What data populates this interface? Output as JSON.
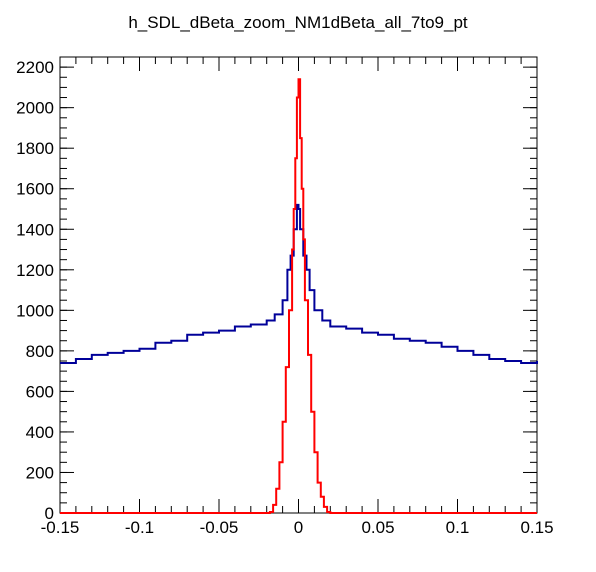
{
  "chart_data": {
    "type": "histogram",
    "title": "h_SDL_dBeta_zoom_NM1dBeta_all_7to9_pt",
    "xlabel": "",
    "ylabel": "",
    "xlim": [
      -0.15,
      0.15
    ],
    "ylim": [
      0,
      2250
    ],
    "x_ticks": [
      "-0.15",
      "-0.1",
      "-0.05",
      "0",
      "0.05",
      "0.1",
      "0.15"
    ],
    "y_ticks": [
      "0",
      "200",
      "400",
      "600",
      "800",
      "1000",
      "1200",
      "1400",
      "1600",
      "1800",
      "2000",
      "2200"
    ],
    "x_tick_values": [
      -0.15,
      -0.1,
      -0.05,
      0,
      0.05,
      0.1,
      0.15
    ],
    "y_tick_values": [
      0,
      200,
      400,
      600,
      800,
      1000,
      1200,
      1400,
      1600,
      1800,
      2000,
      2200
    ],
    "grid": false,
    "legend": "none",
    "series": [
      {
        "color": "#000099",
        "x": [
          -0.15,
          -0.14,
          -0.13,
          -0.12,
          -0.11,
          -0.1,
          -0.09,
          -0.08,
          -0.07,
          -0.06,
          -0.05,
          -0.04,
          -0.03,
          -0.02,
          -0.015,
          -0.01,
          -0.007,
          -0.005,
          -0.003,
          -0.001,
          0.0,
          0.001,
          0.003,
          0.005,
          0.007,
          0.01,
          0.015,
          0.02,
          0.03,
          0.04,
          0.05,
          0.06,
          0.07,
          0.08,
          0.09,
          0.1,
          0.11,
          0.12,
          0.13,
          0.14,
          0.15
        ],
        "y": [
          740,
          760,
          780,
          790,
          800,
          810,
          840,
          850,
          880,
          890,
          900,
          920,
          930,
          950,
          980,
          1050,
          1200,
          1270,
          1400,
          1520,
          1500,
          1400,
          1270,
          1200,
          1100,
          1000,
          950,
          920,
          910,
          890,
          880,
          860,
          850,
          840,
          820,
          800,
          780,
          760,
          750,
          740,
          750
        ]
      },
      {
        "color": "#ff0000",
        "x": [
          -0.15,
          -0.02,
          -0.018,
          -0.016,
          -0.014,
          -0.012,
          -0.01,
          -0.008,
          -0.006,
          -0.004,
          -0.003,
          -0.002,
          -0.001,
          0.0,
          0.001,
          0.002,
          0.003,
          0.004,
          0.006,
          0.008,
          0.01,
          0.012,
          0.014,
          0.016,
          0.018,
          0.02,
          0.15
        ],
        "y": [
          0,
          0,
          5,
          40,
          120,
          250,
          450,
          720,
          1000,
          1300,
          1500,
          1750,
          2050,
          2140,
          1850,
          1600,
          1350,
          1050,
          780,
          500,
          300,
          150,
          80,
          30,
          5,
          0,
          0
        ]
      }
    ]
  }
}
